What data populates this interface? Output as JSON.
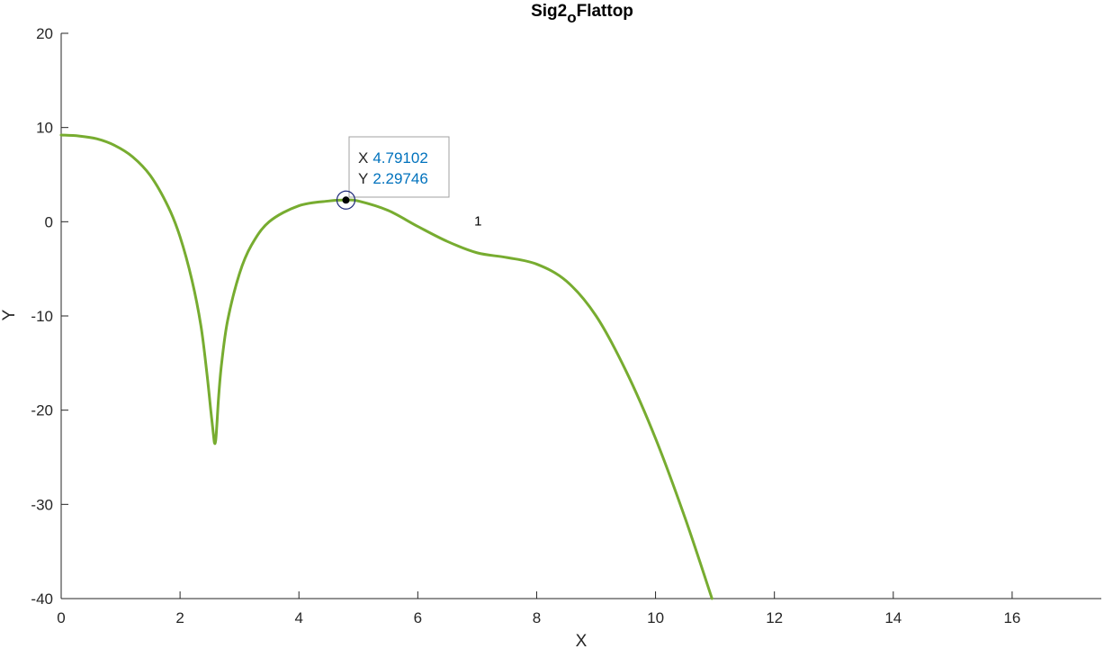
{
  "chart_data": {
    "type": "line",
    "title": "Sig2",
    "title_subscript": "o",
    "title_suffix": "Flattop",
    "xlabel": "X",
    "ylabel": "Y",
    "xlim": [
      0,
      17.5
    ],
    "ylim": [
      -40,
      20
    ],
    "xticks": [
      "0",
      "2",
      "4",
      "6",
      "8",
      "10",
      "12",
      "14",
      "16"
    ],
    "yticks": [
      "20",
      "10",
      "0",
      "-10",
      "-20",
      "-30",
      "-40"
    ],
    "grid": false,
    "series": [
      {
        "color": "#77ac30",
        "x": [
          0,
          0.3,
          0.6,
          0.9,
          1.2,
          1.5,
          1.8,
          2.0,
          2.2,
          2.35,
          2.45,
          2.52,
          2.56,
          2.58,
          2.6,
          2.62,
          2.65,
          2.7,
          2.8,
          3.0,
          3.2,
          3.5,
          4.0,
          4.5,
          4.79102,
          5.0,
          5.5,
          6.0,
          6.5,
          7.0,
          7.5,
          8.0,
          8.5,
          9.0,
          9.5,
          10.0,
          10.5,
          10.95
        ],
        "y": [
          9.2,
          9.1,
          8.8,
          8.1,
          6.9,
          4.9,
          1.6,
          -1.6,
          -6.2,
          -11.0,
          -16.0,
          -20.2,
          -22.5,
          -23.5,
          -23.2,
          -21.5,
          -18.5,
          -15.0,
          -10.5,
          -5.5,
          -2.5,
          0.0,
          1.7,
          2.2,
          2.29746,
          2.2,
          1.2,
          -0.5,
          -2.1,
          -3.3,
          -3.8,
          -4.5,
          -6.3,
          -10.0,
          -15.8,
          -23.0,
          -31.5,
          -40.0
        ]
      }
    ],
    "datatip": {
      "x_label": "X",
      "x_value": "4.79102",
      "y_label": "Y",
      "y_value": "2.29746",
      "x": 4.79102,
      "y": 2.29746,
      "value_color": "#0072bd"
    },
    "annotations": [
      {
        "text": "1",
        "x": 6.95,
        "y": 0
      }
    ]
  }
}
